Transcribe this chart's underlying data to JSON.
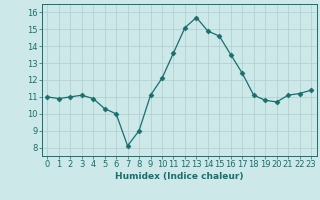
{
  "x": [
    0,
    1,
    2,
    3,
    4,
    5,
    6,
    7,
    8,
    9,
    10,
    11,
    12,
    13,
    14,
    15,
    16,
    17,
    18,
    19,
    20,
    21,
    22,
    23
  ],
  "y": [
    11.0,
    10.9,
    11.0,
    11.1,
    10.9,
    10.3,
    10.0,
    8.1,
    9.0,
    11.1,
    12.1,
    13.6,
    15.1,
    15.7,
    14.9,
    14.6,
    13.5,
    12.4,
    11.1,
    10.8,
    10.7,
    11.1,
    11.2,
    11.4
  ],
  "xlim": [
    -0.5,
    23.5
  ],
  "ylim": [
    7.5,
    16.5
  ],
  "yticks": [
    8,
    9,
    10,
    11,
    12,
    13,
    14,
    15,
    16
  ],
  "xticks": [
    0,
    1,
    2,
    3,
    4,
    5,
    6,
    7,
    8,
    9,
    10,
    11,
    12,
    13,
    14,
    15,
    16,
    17,
    18,
    19,
    20,
    21,
    22,
    23
  ],
  "xlabel": "Humidex (Indice chaleur)",
  "line_color": "#1a6e6e",
  "marker": "D",
  "marker_size": 2.5,
  "bg_color": "#cce8e8",
  "grid_color": "#b0cccc",
  "label_fontsize": 6.5,
  "tick_fontsize": 6.0
}
